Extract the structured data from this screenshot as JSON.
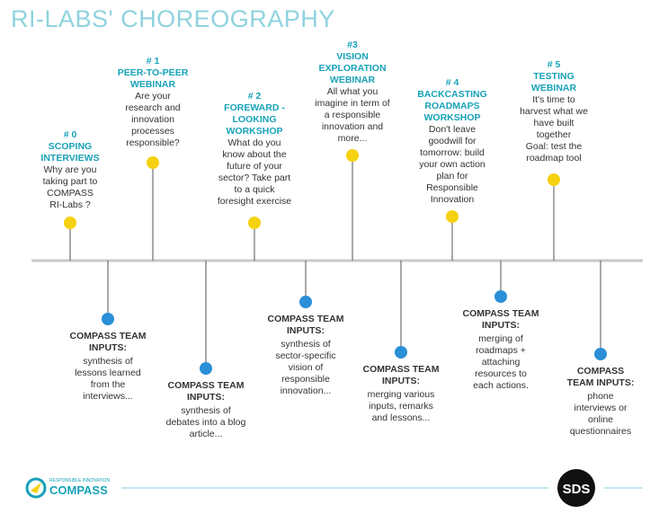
{
  "header": {
    "title": "RI-LABS' CHOREOGRAPHY"
  },
  "stages": [
    {
      "number": "# 0",
      "title": [
        "SCOPING",
        "INTERVIEWS"
      ],
      "description": [
        "Why are you",
        "taking part to",
        "COMPASS",
        "RI-Labs ?"
      ]
    },
    {
      "number": "# 1",
      "title": [
        "PEER-TO-PEER",
        "WEBINAR"
      ],
      "description": [
        "Are your",
        "research and",
        "innovation",
        "processes",
        "responsible?"
      ]
    },
    {
      "number": "# 2",
      "title": [
        "FOREWARD -",
        "LOOKING",
        "WORKSHOP"
      ],
      "description": [
        "What do you",
        "know about the",
        "future of your",
        "sector? Take part",
        "to a quick",
        "foresight exercise"
      ]
    },
    {
      "number": "#3",
      "title": [
        "VISION",
        "EXPLORATION",
        "WEBINAR"
      ],
      "description": [
        "All what you",
        "imagine in term of",
        "a responsible",
        "innovation and",
        "more..."
      ]
    },
    {
      "number": "# 4",
      "title": [
        "BACKCASTING",
        "ROADMAPS",
        "WORKSHOP"
      ],
      "description": [
        "Don't leave",
        "goodwill for",
        "tomorrow: build",
        "your own action",
        "plan for",
        "Responsible",
        "Innovation"
      ]
    },
    {
      "number": "# 5",
      "title": [
        "TESTING",
        "WEBINAR"
      ],
      "description": [
        "It's time to",
        "harvest what we",
        "have built",
        "together",
        "Goal: test the",
        "roadmap tool"
      ]
    }
  ],
  "inputs": [
    {
      "heading": [
        "COMPASS TEAM",
        "INPUTS:"
      ],
      "text": [
        "synthesis of",
        "lessons learned",
        "from the",
        "interviews..."
      ]
    },
    {
      "heading": [
        "COMPASS TEAM",
        "INPUTS:"
      ],
      "text": [
        "synthesis of",
        "debates into a blog",
        "article..."
      ]
    },
    {
      "heading": [
        "COMPASS TEAM",
        "INPUTS:"
      ],
      "text": [
        "synthesis of",
        "sector-specific",
        "vision of",
        "responsible",
        "innovation..."
      ]
    },
    {
      "heading": [
        "COMPASS TEAM",
        "INPUTS:"
      ],
      "text": [
        "merging various",
        "inputs, remarks",
        "and lessons..."
      ]
    },
    {
      "heading": [
        "COMPASS TEAM",
        "INPUTS:"
      ],
      "text": [
        "merging of",
        "roadmaps +",
        "attaching",
        "resources to",
        "each actions."
      ]
    },
    {
      "heading": [
        "COMPASS",
        "TEAM INPUTS:"
      ],
      "text": [
        "phone",
        "interviews or",
        "online",
        "questionnaires"
      ]
    }
  ],
  "footer": {
    "logo_tagline": "RESPONSIBLE INNOVATION",
    "logo_name": "COMPASS",
    "partner": "SDS"
  }
}
